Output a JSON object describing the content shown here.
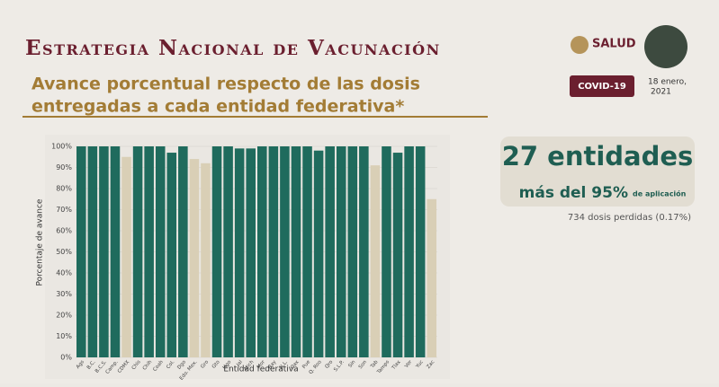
{
  "slide": {
    "title": "Estrategia Nacional de Vacunación",
    "subtitle_lines": [
      "Avance porcentual respecto de las dosis",
      "entregadas a cada entidad federativa*"
    ],
    "logo": "SALUD",
    "badge": "COVID-19",
    "date_lines": [
      "18 enero,",
      "2021"
    ],
    "highlight": "27 entidades",
    "highlight_sub": "más del 95%",
    "highlight_small": "de aplicación",
    "note": "734 dosis perdidas (0.17%)"
  },
  "chart_data": {
    "type": "bar",
    "y_label": "Porcentaje de avance",
    "x_label": "Entidad federativa",
    "categories": [
      "Ags",
      "B.C.",
      "B.C.S.",
      "Camp.",
      "CDMX",
      "Chis",
      "Chih",
      "Coah",
      "Col.",
      "Dgo",
      "Edo. Mex.",
      "Gro",
      "Gto",
      "Hgo",
      "Jal",
      "Mich",
      "Mor",
      "Nay",
      "N.L.",
      "Oax",
      "Pue",
      "Q. Roo",
      "Qro",
      "S.L.P.",
      "Sin",
      "Son",
      "Tab",
      "Tamps",
      "Tlax",
      "Ver",
      "Yuc",
      "Zac"
    ],
    "values": [
      100,
      100,
      100,
      100,
      95,
      100,
      100,
      100,
      97,
      100,
      94,
      92,
      100,
      100,
      99,
      99,
      100,
      100,
      100,
      100,
      100,
      98,
      100,
      100,
      100,
      100,
      91,
      100,
      97,
      100,
      100,
      75
    ],
    "bar_colors": [
      "#1f6b5d",
      "#1f6b5d",
      "#1f6b5d",
      "#1f6b5d",
      "#d9cfb6",
      "#1f6b5d",
      "#1f6b5d",
      "#1f6b5d",
      "#1f6b5d",
      "#1f6b5d",
      "#d9cfb6",
      "#d9cfb6",
      "#1f6b5d",
      "#1f6b5d",
      "#1f6b5d",
      "#1f6b5d",
      "#1f6b5d",
      "#1f6b5d",
      "#1f6b5d",
      "#1f6b5d",
      "#1f6b5d",
      "#1f6b5d",
      "#1f6b5d",
      "#1f6b5d",
      "#1f6b5d",
      "#1f6b5d",
      "#d9cfb6",
      "#1f6b5d",
      "#1f6b5d",
      "#1f6b5d",
      "#1f6b5d",
      "#d9cfb6"
    ],
    "ylim": [
      0,
      100
    ],
    "yticks": [
      {
        "value": 0,
        "label": "0%"
      },
      {
        "value": 10,
        "label": "10%"
      },
      {
        "value": 20,
        "label": "20%"
      },
      {
        "value": 30,
        "label": "30%"
      },
      {
        "value": 40,
        "label": "40%"
      },
      {
        "value": 50,
        "label": "50%"
      },
      {
        "value": 60,
        "label": "60%"
      },
      {
        "value": 70,
        "label": "70%"
      },
      {
        "value": 80,
        "label": "80%"
      },
      {
        "value": 90,
        "label": "90%"
      },
      {
        "value": 100,
        "label": "100%"
      }
    ],
    "grid": true
  }
}
